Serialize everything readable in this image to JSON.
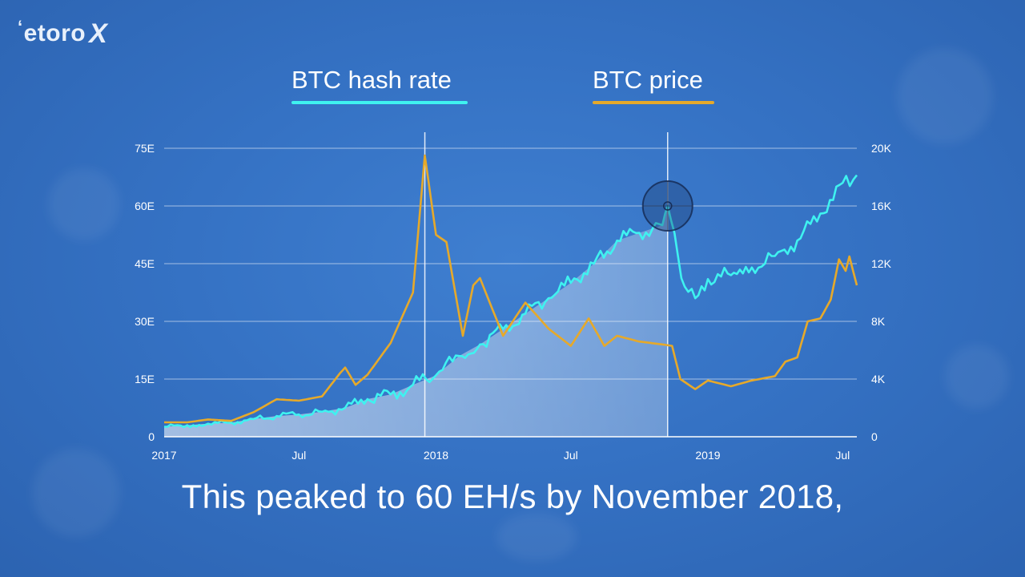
{
  "logo": {
    "text": "etoro",
    "mark": "X"
  },
  "legend": [
    {
      "label": "BTC hash rate",
      "color": "#3ff2f0"
    },
    {
      "label": "BTC price",
      "color": "#e6a92a"
    }
  ],
  "subtitle": "This peaked to 60 EH/s by November 2018,",
  "chart_data": {
    "type": "line",
    "x_range": [
      "2017-01-01",
      "2019-07-20"
    ],
    "x_ticks": [
      {
        "date": "2017-01-01",
        "label": "2017"
      },
      {
        "date": "2017-07-01",
        "label": "Jul"
      },
      {
        "date": "2018-01-01",
        "label": "2018"
      },
      {
        "date": "2018-07-01",
        "label": "Jul"
      },
      {
        "date": "2019-01-01",
        "label": "2019"
      },
      {
        "date": "2019-07-01",
        "label": "Jul"
      }
    ],
    "y_left": {
      "label": "",
      "range": [
        0,
        75
      ],
      "ticks": [
        "0",
        "15E",
        "30E",
        "45E",
        "60E",
        "75E"
      ]
    },
    "y_right": {
      "label": "",
      "range": [
        0,
        20000
      ],
      "ticks": [
        "0",
        "4K",
        "8K",
        "12K",
        "16K",
        "20K"
      ]
    },
    "grid": true,
    "vertical_markers": [
      "2017-12-17",
      "2018-11-08"
    ],
    "highlight": {
      "date": "2018-11-08",
      "value": 60
    },
    "series": [
      {
        "name": "BTC hash rate",
        "axis": "left",
        "color": "#3ff2f0",
        "points": [
          [
            "2017-01-01",
            2.6
          ],
          [
            "2017-02-01",
            3.0
          ],
          [
            "2017-03-01",
            3.4
          ],
          [
            "2017-04-01",
            3.7
          ],
          [
            "2017-05-01",
            4.6
          ],
          [
            "2017-06-01",
            5.4
          ],
          [
            "2017-07-01",
            5.8
          ],
          [
            "2017-08-01",
            6.5
          ],
          [
            "2017-09-01",
            7.5
          ],
          [
            "2017-10-01",
            9.8
          ],
          [
            "2017-11-01",
            11.0
          ],
          [
            "2017-12-01",
            13.5
          ],
          [
            "2018-01-01",
            16.0
          ],
          [
            "2018-02-01",
            21.0
          ],
          [
            "2018-03-01",
            24.0
          ],
          [
            "2018-04-01",
            28.0
          ],
          [
            "2018-05-01",
            32.0
          ],
          [
            "2018-06-01",
            36.0
          ],
          [
            "2018-07-01",
            40.0
          ],
          [
            "2018-08-01",
            45.0
          ],
          [
            "2018-09-01",
            51.0
          ],
          [
            "2018-10-01",
            53.0
          ],
          [
            "2018-11-01",
            55.0
          ],
          [
            "2018-11-08",
            60.0
          ],
          [
            "2018-12-01",
            39.0
          ],
          [
            "2018-12-15",
            36.0
          ],
          [
            "2019-01-01",
            41.0
          ],
          [
            "2019-02-01",
            42.0
          ],
          [
            "2019-03-01",
            44.0
          ],
          [
            "2019-04-01",
            47.0
          ],
          [
            "2019-05-01",
            51.0
          ],
          [
            "2019-06-01",
            58.0
          ],
          [
            "2019-07-01",
            66.0
          ],
          [
            "2019-07-20",
            68.0
          ]
        ]
      },
      {
        "name": "BTC price",
        "axis": "right",
        "color": "#e6a92a",
        "points": [
          [
            "2017-01-01",
            1000
          ],
          [
            "2017-02-01",
            1000
          ],
          [
            "2017-03-01",
            1200
          ],
          [
            "2017-04-01",
            1100
          ],
          [
            "2017-05-01",
            1700
          ],
          [
            "2017-06-01",
            2600
          ],
          [
            "2017-07-01",
            2500
          ],
          [
            "2017-08-01",
            2800
          ],
          [
            "2017-08-25",
            4400
          ],
          [
            "2017-09-01",
            4800
          ],
          [
            "2017-09-15",
            3600
          ],
          [
            "2017-10-01",
            4300
          ],
          [
            "2017-11-01",
            6500
          ],
          [
            "2017-12-01",
            10000
          ],
          [
            "2017-12-17",
            19500
          ],
          [
            "2018-01-01",
            14000
          ],
          [
            "2018-01-15",
            13500
          ],
          [
            "2018-02-06",
            7000
          ],
          [
            "2018-02-20",
            10500
          ],
          [
            "2018-03-01",
            11000
          ],
          [
            "2018-04-01",
            7000
          ],
          [
            "2018-05-01",
            9300
          ],
          [
            "2018-06-01",
            7500
          ],
          [
            "2018-07-01",
            6300
          ],
          [
            "2018-07-25",
            8200
          ],
          [
            "2018-08-15",
            6300
          ],
          [
            "2018-09-01",
            7000
          ],
          [
            "2018-10-01",
            6600
          ],
          [
            "2018-11-01",
            6400
          ],
          [
            "2018-11-14",
            6300
          ],
          [
            "2018-11-25",
            4000
          ],
          [
            "2018-12-15",
            3300
          ],
          [
            "2019-01-01",
            3900
          ],
          [
            "2019-02-01",
            3500
          ],
          [
            "2019-03-01",
            3900
          ],
          [
            "2019-04-01",
            4200
          ],
          [
            "2019-04-15",
            5200
          ],
          [
            "2019-05-01",
            5500
          ],
          [
            "2019-05-15",
            8000
          ],
          [
            "2019-06-01",
            8200
          ],
          [
            "2019-06-15",
            9500
          ],
          [
            "2019-06-26",
            12300
          ],
          [
            "2019-07-05",
            11500
          ],
          [
            "2019-07-10",
            12500
          ],
          [
            "2019-07-20",
            10500
          ]
        ]
      }
    ]
  }
}
